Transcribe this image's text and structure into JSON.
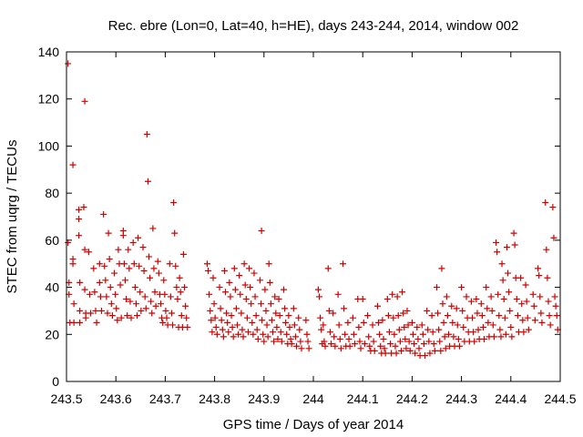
{
  "chart_data": {
    "type": "scatter",
    "title": "Rec. ebre (Lon=0, Lat=40, h=HE), days 243-244, 2014, window 002",
    "xlabel": "GPS time / Days of year 2014",
    "ylabel": "STEC from uqrg / TECUs",
    "xlim": [
      243.5,
      244.5
    ],
    "ylim": [
      0,
      140
    ],
    "xticks": [
      "243.5",
      "243.6",
      "243.7",
      "243.8",
      "243.9",
      "244",
      "244.1",
      "244.2",
      "244.3",
      "244.4",
      "244.5"
    ],
    "xtick_values": [
      243.5,
      243.6,
      243.7,
      243.8,
      243.9,
      244.0,
      244.1,
      244.2,
      244.3,
      244.4,
      244.5
    ],
    "yticks": [
      "0",
      "20",
      "40",
      "60",
      "80",
      "100",
      "120",
      "140"
    ],
    "ytick_values": [
      0,
      20,
      40,
      60,
      80,
      100,
      120,
      140
    ],
    "grid": false,
    "marker": "+",
    "color": "#d00000",
    "points": [
      [
        243.503,
        135
      ],
      [
        243.503,
        59
      ],
      [
        243.505,
        42
      ],
      [
        243.505,
        37
      ],
      [
        243.507,
        25
      ],
      [
        243.513,
        92
      ],
      [
        243.513,
        52
      ],
      [
        243.513,
        50
      ],
      [
        243.515,
        33
      ],
      [
        243.515,
        25
      ],
      [
        243.525,
        73
      ],
      [
        243.525,
        69
      ],
      [
        243.525,
        62
      ],
      [
        243.527,
        42
      ],
      [
        243.527,
        30
      ],
      [
        243.527,
        25
      ],
      [
        243.535,
        74
      ],
      [
        243.537,
        119
      ],
      [
        243.537,
        56
      ],
      [
        243.537,
        39
      ],
      [
        243.539,
        29
      ],
      [
        243.539,
        27
      ],
      [
        243.545,
        55
      ],
      [
        243.547,
        37
      ],
      [
        243.549,
        29
      ],
      [
        243.555,
        48
      ],
      [
        243.557,
        38
      ],
      [
        243.559,
        30
      ],
      [
        243.561,
        25
      ],
      [
        243.567,
        50
      ],
      [
        243.567,
        42
      ],
      [
        243.569,
        36
      ],
      [
        243.571,
        30
      ],
      [
        243.575,
        71
      ],
      [
        243.577,
        49
      ],
      [
        243.579,
        43
      ],
      [
        243.581,
        36
      ],
      [
        243.583,
        29
      ],
      [
        243.585,
        63
      ],
      [
        243.587,
        52
      ],
      [
        243.589,
        40
      ],
      [
        243.591,
        33
      ],
      [
        243.593,
        28
      ],
      [
        243.597,
        46
      ],
      [
        243.599,
        37
      ],
      [
        243.601,
        31
      ],
      [
        243.603,
        26
      ],
      [
        243.605,
        56
      ],
      [
        243.607,
        50
      ],
      [
        243.609,
        41
      ],
      [
        243.611,
        27
      ],
      [
        243.615,
        64
      ],
      [
        243.615,
        62
      ],
      [
        243.617,
        50
      ],
      [
        243.619,
        43
      ],
      [
        243.621,
        35
      ],
      [
        243.623,
        28
      ],
      [
        243.625,
        56
      ],
      [
        243.627,
        48
      ],
      [
        243.629,
        34
      ],
      [
        243.631,
        27
      ],
      [
        243.635,
        59
      ],
      [
        243.637,
        50
      ],
      [
        243.639,
        40
      ],
      [
        243.641,
        33
      ],
      [
        243.643,
        28
      ],
      [
        243.645,
        61
      ],
      [
        243.647,
        49
      ],
      [
        243.649,
        38
      ],
      [
        243.651,
        30
      ],
      [
        243.655,
        57
      ],
      [
        243.657,
        47
      ],
      [
        243.659,
        36
      ],
      [
        243.661,
        31
      ],
      [
        243.663,
        105
      ],
      [
        243.665,
        85
      ],
      [
        243.667,
        53
      ],
      [
        243.669,
        44
      ],
      [
        243.671,
        34
      ],
      [
        243.673,
        29
      ],
      [
        243.675,
        65
      ],
      [
        243.677,
        48
      ],
      [
        243.679,
        38
      ],
      [
        243.681,
        32
      ],
      [
        243.685,
        51
      ],
      [
        243.687,
        46
      ],
      [
        243.689,
        37
      ],
      [
        243.691,
        33
      ],
      [
        243.693,
        27
      ],
      [
        243.695,
        25
      ],
      [
        243.697,
        43
      ],
      [
        243.699,
        37
      ],
      [
        243.701,
        30
      ],
      [
        243.703,
        27
      ],
      [
        243.705,
        24
      ],
      [
        243.709,
        50
      ],
      [
        243.711,
        36
      ],
      [
        243.713,
        29
      ],
      [
        243.715,
        24
      ],
      [
        243.717,
        76
      ],
      [
        243.719,
        63
      ],
      [
        243.721,
        49
      ],
      [
        243.723,
        40
      ],
      [
        243.725,
        35
      ],
      [
        243.727,
        23
      ],
      [
        243.729,
        44
      ],
      [
        243.731,
        38
      ],
      [
        243.733,
        28
      ],
      [
        243.735,
        23
      ],
      [
        243.737,
        54
      ],
      [
        243.739,
        40
      ],
      [
        243.741,
        32
      ],
      [
        243.743,
        27
      ],
      [
        243.745,
        23
      ],
      [
        243.785,
        50
      ],
      [
        243.787,
        47
      ],
      [
        243.789,
        37
      ],
      [
        243.791,
        30
      ],
      [
        243.793,
        26
      ],
      [
        243.795,
        21
      ],
      [
        243.797,
        44
      ],
      [
        243.799,
        33
      ],
      [
        243.801,
        27
      ],
      [
        243.803,
        23
      ],
      [
        243.805,
        20
      ],
      [
        243.81,
        40
      ],
      [
        243.812,
        31
      ],
      [
        243.814,
        26
      ],
      [
        243.816,
        22
      ],
      [
        243.818,
        19
      ],
      [
        243.82,
        47
      ],
      [
        243.822,
        38
      ],
      [
        243.824,
        29
      ],
      [
        243.826,
        25
      ],
      [
        243.828,
        21
      ],
      [
        243.83,
        42
      ],
      [
        243.832,
        36
      ],
      [
        243.834,
        28
      ],
      [
        243.836,
        23
      ],
      [
        243.838,
        19
      ],
      [
        243.84,
        48
      ],
      [
        243.842,
        39
      ],
      [
        243.844,
        31
      ],
      [
        243.846,
        24
      ],
      [
        243.848,
        20
      ],
      [
        243.85,
        45
      ],
      [
        243.852,
        37
      ],
      [
        243.854,
        29
      ],
      [
        243.856,
        22
      ],
      [
        243.858,
        19
      ],
      [
        243.86,
        50
      ],
      [
        243.862,
        41
      ],
      [
        243.864,
        35
      ],
      [
        243.866,
        27
      ],
      [
        243.868,
        21
      ],
      [
        243.87,
        48
      ],
      [
        243.872,
        40
      ],
      [
        243.874,
        33
      ],
      [
        243.876,
        25
      ],
      [
        243.878,
        20
      ],
      [
        243.88,
        46
      ],
      [
        243.882,
        36
      ],
      [
        243.884,
        28
      ],
      [
        243.886,
        22
      ],
      [
        243.888,
        18
      ],
      [
        243.892,
        43
      ],
      [
        243.894,
        33
      ],
      [
        243.896,
        26
      ],
      [
        243.898,
        20
      ],
      [
        243.9,
        17
      ],
      [
        243.895,
        64
      ],
      [
        243.902,
        39
      ],
      [
        243.904,
        30
      ],
      [
        243.906,
        24
      ],
      [
        243.908,
        19
      ],
      [
        243.91,
        50
      ],
      [
        243.912,
        42
      ],
      [
        243.914,
        33
      ],
      [
        243.916,
        26
      ],
      [
        243.918,
        21
      ],
      [
        243.92,
        17
      ],
      [
        243.922,
        36
      ],
      [
        243.924,
        29
      ],
      [
        243.926,
        23
      ],
      [
        243.928,
        18
      ],
      [
        243.93,
        35
      ],
      [
        243.932,
        28
      ],
      [
        243.934,
        21
      ],
      [
        243.936,
        17
      ],
      [
        243.94,
        39
      ],
      [
        243.942,
        31
      ],
      [
        243.944,
        25
      ],
      [
        243.946,
        20
      ],
      [
        243.948,
        16
      ],
      [
        243.95,
        28
      ],
      [
        243.952,
        23
      ],
      [
        243.954,
        18
      ],
      [
        243.956,
        16
      ],
      [
        243.96,
        31
      ],
      [
        243.962,
        24
      ],
      [
        243.964,
        19
      ],
      [
        243.966,
        15
      ],
      [
        243.97,
        27
      ],
      [
        243.972,
        22
      ],
      [
        243.974,
        17
      ],
      [
        243.976,
        14
      ],
      [
        243.985,
        26
      ],
      [
        243.987,
        20
      ],
      [
        243.989,
        17
      ],
      [
        243.991,
        14
      ],
      [
        244.01,
        39
      ],
      [
        244.012,
        36
      ],
      [
        244.014,
        27
      ],
      [
        244.016,
        22
      ],
      [
        244.018,
        16
      ],
      [
        244.02,
        24
      ],
      [
        244.022,
        17
      ],
      [
        244.024,
        15
      ],
      [
        244.03,
        48
      ],
      [
        244.032,
        30
      ],
      [
        244.034,
        21
      ],
      [
        244.036,
        16
      ],
      [
        244.04,
        29
      ],
      [
        244.042,
        19
      ],
      [
        244.044,
        15
      ],
      [
        244.05,
        37
      ],
      [
        244.052,
        24
      ],
      [
        244.054,
        18
      ],
      [
        244.056,
        14
      ],
      [
        244.06,
        50
      ],
      [
        244.062,
        31
      ],
      [
        244.064,
        20
      ],
      [
        244.066,
        15
      ],
      [
        244.07,
        25
      ],
      [
        244.072,
        18
      ],
      [
        244.074,
        15
      ],
      [
        244.08,
        27
      ],
      [
        244.082,
        20
      ],
      [
        244.084,
        16
      ],
      [
        244.09,
        35
      ],
      [
        244.092,
        23
      ],
      [
        244.094,
        17
      ],
      [
        244.096,
        14
      ],
      [
        244.1,
        35
      ],
      [
        244.102,
        25
      ],
      [
        244.104,
        16
      ],
      [
        244.11,
        28
      ],
      [
        244.112,
        19
      ],
      [
        244.114,
        15
      ],
      [
        244.116,
        13
      ],
      [
        244.12,
        24
      ],
      [
        244.122,
        17
      ],
      [
        244.124,
        13
      ],
      [
        244.13,
        32
      ],
      [
        244.132,
        25
      ],
      [
        244.134,
        20
      ],
      [
        244.136,
        15
      ],
      [
        244.138,
        12
      ],
      [
        244.14,
        26
      ],
      [
        244.142,
        18
      ],
      [
        244.144,
        14
      ],
      [
        244.146,
        12
      ],
      [
        244.15,
        35
      ],
      [
        244.152,
        28
      ],
      [
        244.154,
        21
      ],
      [
        244.156,
        16
      ],
      [
        244.158,
        12
      ],
      [
        244.16,
        37
      ],
      [
        244.162,
        27
      ],
      [
        244.164,
        20
      ],
      [
        244.166,
        15
      ],
      [
        244.168,
        12
      ],
      [
        244.17,
        36
      ],
      [
        244.172,
        28
      ],
      [
        244.174,
        22
      ],
      [
        244.176,
        17
      ],
      [
        244.178,
        13
      ],
      [
        244.18,
        38
      ],
      [
        244.182,
        29
      ],
      [
        244.184,
        23
      ],
      [
        244.186,
        18
      ],
      [
        244.188,
        14
      ],
      [
        244.19,
        30
      ],
      [
        244.192,
        24
      ],
      [
        244.194,
        17
      ],
      [
        244.196,
        13
      ],
      [
        244.2,
        25
      ],
      [
        244.202,
        20
      ],
      [
        244.204,
        16
      ],
      [
        244.206,
        12
      ],
      [
        244.21,
        23
      ],
      [
        244.212,
        18
      ],
      [
        244.214,
        14
      ],
      [
        244.216,
        11
      ],
      [
        244.22,
        24
      ],
      [
        244.222,
        20
      ],
      [
        244.224,
        16
      ],
      [
        244.226,
        11
      ],
      [
        244.23,
        30
      ],
      [
        244.232,
        22
      ],
      [
        244.234,
        17
      ],
      [
        244.236,
        12
      ],
      [
        244.24,
        28
      ],
      [
        244.242,
        21
      ],
      [
        244.244,
        16
      ],
      [
        244.246,
        13
      ],
      [
        244.25,
        40
      ],
      [
        244.252,
        29
      ],
      [
        244.254,
        22
      ],
      [
        244.256,
        17
      ],
      [
        244.258,
        13
      ],
      [
        244.26,
        48
      ],
      [
        244.262,
        33
      ],
      [
        244.264,
        25
      ],
      [
        244.266,
        19
      ],
      [
        244.268,
        14
      ],
      [
        244.27,
        36
      ],
      [
        244.272,
        28
      ],
      [
        244.274,
        20
      ],
      [
        244.276,
        15
      ],
      [
        244.28,
        32
      ],
      [
        244.282,
        25
      ],
      [
        244.284,
        19
      ],
      [
        244.286,
        15
      ],
      [
        244.29,
        31
      ],
      [
        244.292,
        24
      ],
      [
        244.294,
        18
      ],
      [
        244.296,
        15
      ],
      [
        244.3,
        40
      ],
      [
        244.302,
        30
      ],
      [
        244.304,
        23
      ],
      [
        244.306,
        17
      ],
      [
        244.31,
        36
      ],
      [
        244.312,
        27
      ],
      [
        244.314,
        21
      ],
      [
        244.316,
        17
      ],
      [
        244.32,
        34
      ],
      [
        244.322,
        27
      ],
      [
        244.324,
        21
      ],
      [
        244.326,
        17
      ],
      [
        244.33,
        35
      ],
      [
        244.332,
        29
      ],
      [
        244.334,
        22
      ],
      [
        244.336,
        18
      ],
      [
        244.34,
        33
      ],
      [
        244.342,
        28
      ],
      [
        244.344,
        23
      ],
      [
        244.346,
        18
      ],
      [
        244.35,
        40
      ],
      [
        244.352,
        31
      ],
      [
        244.354,
        25
      ],
      [
        244.356,
        19
      ],
      [
        244.36,
        36
      ],
      [
        244.362,
        30
      ],
      [
        244.364,
        24
      ],
      [
        244.366,
        19
      ],
      [
        244.37,
        59
      ],
      [
        244.372,
        55
      ],
      [
        244.374,
        37
      ],
      [
        244.376,
        28
      ],
      [
        244.378,
        22
      ],
      [
        244.38,
        19
      ],
      [
        244.382,
        50
      ],
      [
        244.384,
        43
      ],
      [
        244.386,
        35
      ],
      [
        244.388,
        27
      ],
      [
        244.39,
        20
      ],
      [
        244.392,
        57
      ],
      [
        244.394,
        46
      ],
      [
        244.396,
        38
      ],
      [
        244.398,
        30
      ],
      [
        244.4,
        23
      ],
      [
        244.402,
        19
      ],
      [
        244.406,
        63
      ],
      [
        244.408,
        58
      ],
      [
        244.41,
        44
      ],
      [
        244.412,
        35
      ],
      [
        244.414,
        28
      ],
      [
        244.416,
        21
      ],
      [
        244.42,
        44
      ],
      [
        244.422,
        33
      ],
      [
        244.424,
        26
      ],
      [
        244.426,
        21
      ],
      [
        244.43,
        41
      ],
      [
        244.432,
        34
      ],
      [
        244.434,
        27
      ],
      [
        244.436,
        22
      ],
      [
        244.445,
        37
      ],
      [
        244.447,
        32
      ],
      [
        244.449,
        26
      ],
      [
        244.455,
        48
      ],
      [
        244.457,
        45
      ],
      [
        244.459,
        36
      ],
      [
        244.461,
        29
      ],
      [
        244.463,
        25
      ],
      [
        244.47,
        76
      ],
      [
        244.472,
        56
      ],
      [
        244.474,
        44
      ],
      [
        244.476,
        34
      ],
      [
        244.478,
        28
      ],
      [
        244.48,
        24
      ],
      [
        244.485,
        74
      ],
      [
        244.487,
        61
      ],
      [
        244.489,
        36
      ],
      [
        244.491,
        32
      ],
      [
        244.493,
        28
      ],
      [
        244.495,
        22
      ]
    ]
  }
}
